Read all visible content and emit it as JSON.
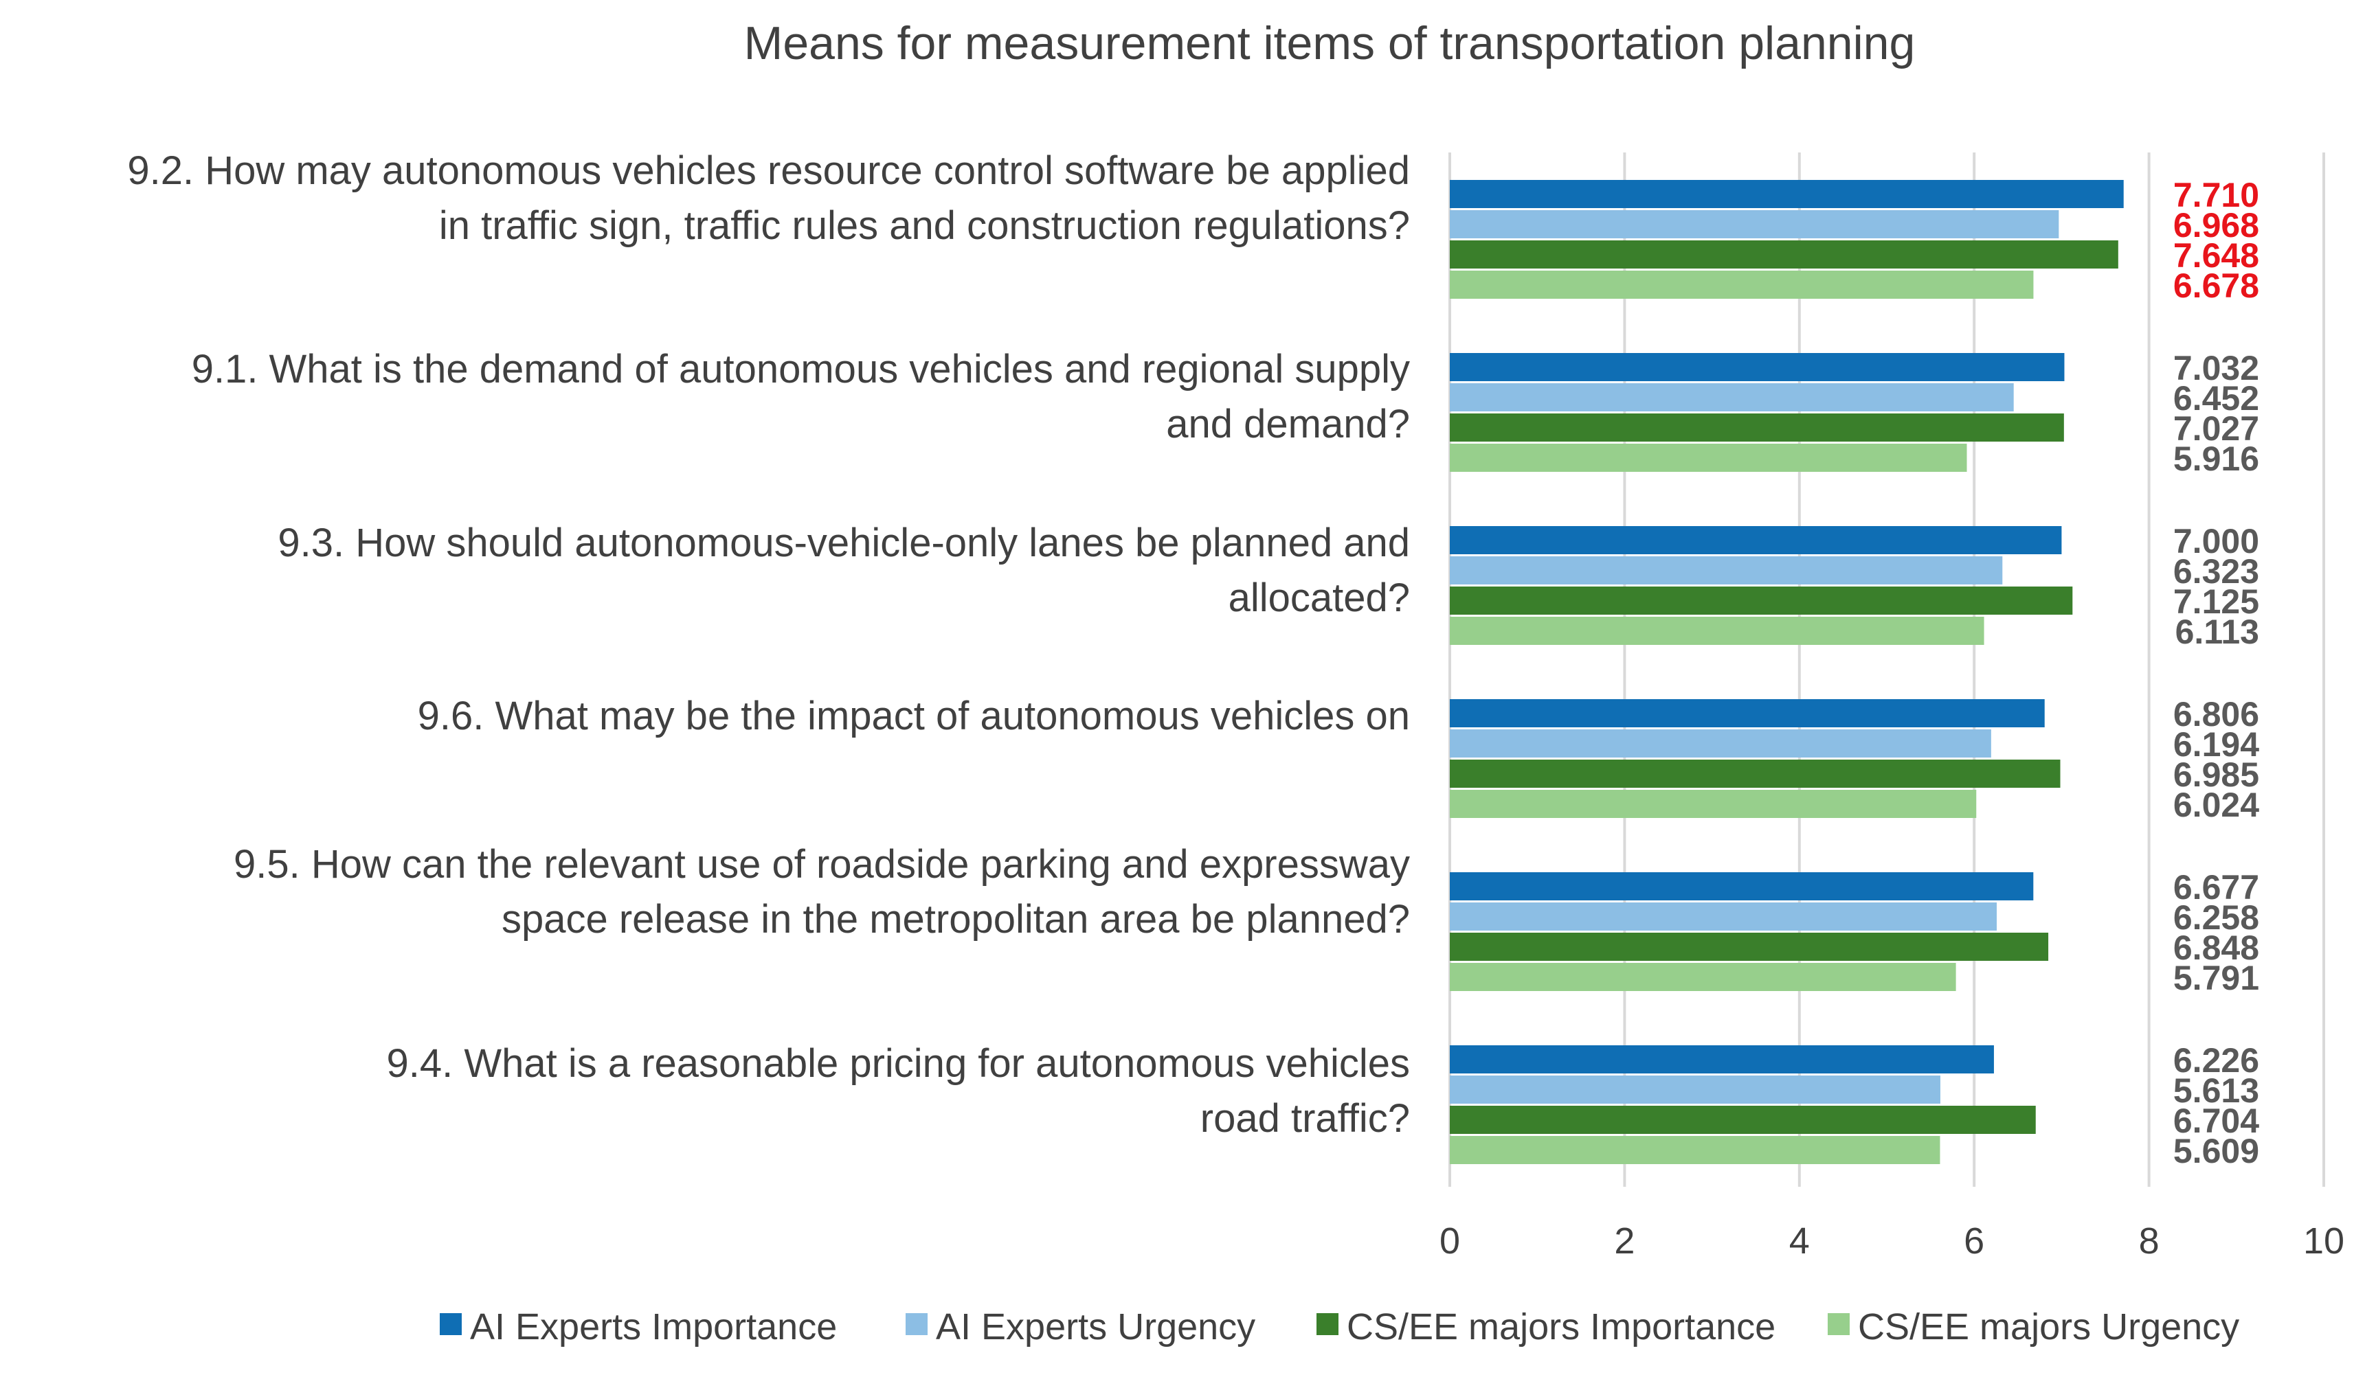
{
  "chart_data": {
    "type": "bar",
    "orientation": "horizontal",
    "title": "Means for measurement items of transportation planning",
    "xlabel": "",
    "ylabel": "",
    "xlim": [
      0,
      10
    ],
    "x_ticks": [
      0,
      2,
      4,
      6,
      8,
      10
    ],
    "grid": true,
    "legend_position": "bottom",
    "categories": [
      {
        "lines": [
          "9.2. How may autonomous vehicles resource control software be applied",
          "in traffic sign, traffic rules and construction regulations?"
        ],
        "highlight": true
      },
      {
        "lines": [
          "9.1. What is the demand of autonomous vehicles and regional supply",
          "and demand?"
        ],
        "highlight": false
      },
      {
        "lines": [
          "9.3. How should autonomous-vehicle-only lanes be planned and",
          "allocated?"
        ],
        "highlight": false
      },
      {
        "lines": [
          "9.6. What may be the impact of autonomous vehicles on"
        ],
        "highlight": false
      },
      {
        "lines": [
          "9.5. How can the relevant use of roadside parking and expressway",
          "space release in the metropolitan area be planned?"
        ],
        "highlight": false
      },
      {
        "lines": [
          "9.4. What is a reasonable pricing for autonomous vehicles",
          "road traffic?"
        ],
        "highlight": false
      }
    ],
    "series": [
      {
        "name": "AI Experts  Importance",
        "color": "#0F6EB4",
        "values": [
          7.71,
          7.032,
          7.0,
          6.806,
          6.677,
          6.226
        ],
        "labels": [
          "7.710",
          "7.032",
          "7.000",
          "6.806",
          "6.677",
          "6.226"
        ]
      },
      {
        "name": "AI Experts  Urgency",
        "color": "#8CBEE4",
        "values": [
          6.968,
          6.452,
          6.323,
          6.194,
          6.258,
          5.613
        ],
        "labels": [
          "6.968",
          "6.452",
          "6.323",
          "6.194",
          "6.258",
          "5.613"
        ]
      },
      {
        "name": "CS/EE majors Importance",
        "color": "#3A7F2B",
        "values": [
          7.648,
          7.027,
          7.125,
          6.985,
          6.848,
          6.704
        ],
        "labels": [
          "7.648",
          "7.027",
          "7.125",
          "6.985",
          "6.848",
          "6.704"
        ]
      },
      {
        "name": "CS/EE majors Urgency",
        "color": "#97CF8C",
        "values": [
          6.678,
          5.916,
          6.113,
          6.024,
          5.791,
          5.609
        ],
        "labels": [
          "6.678",
          "5.916",
          "6.113",
          "6.024",
          "5.791",
          "5.609"
        ]
      }
    ],
    "highlight_color": "#E8141B",
    "label_color": "#595959"
  }
}
